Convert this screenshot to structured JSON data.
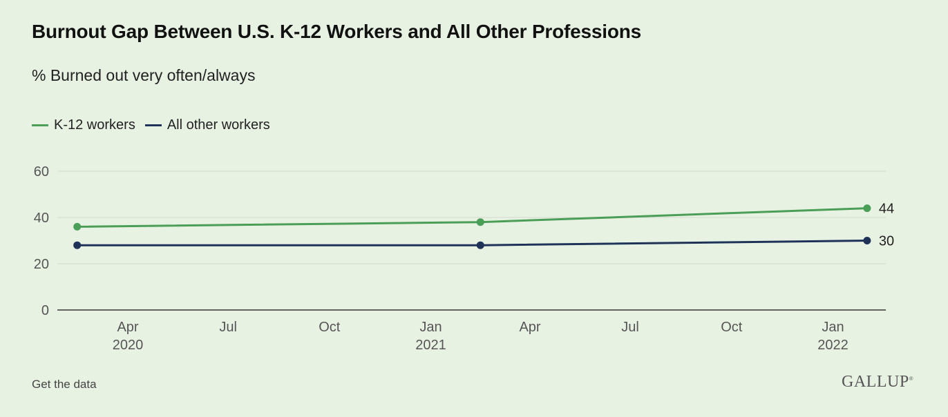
{
  "title": "Burnout Gap Between U.S. K-12 Workers and All Other Professions",
  "subtitle": "% Burned out very often/always",
  "footer": {
    "get_data": "Get the data",
    "logo": "GALLUP"
  },
  "colors": {
    "k12": "#4a9e57",
    "other": "#1f3258",
    "grid": "#cfd8cc",
    "axis": "#333333"
  },
  "chart_data": {
    "type": "line",
    "x": [
      "2020-02-15",
      "2021-02-15",
      "2022-02-01"
    ],
    "series": [
      {
        "name": "K-12 workers",
        "values": [
          36,
          38,
          44
        ],
        "color": "#4a9e57"
      },
      {
        "name": "All other workers",
        "values": [
          28,
          28,
          30
        ],
        "color": "#1f3258"
      }
    ],
    "ylim": [
      0,
      60
    ],
    "y_ticks": [
      0,
      20,
      40,
      60
    ],
    "x_ticks": [
      {
        "date": "2020-04-01",
        "label": "Apr",
        "year": "2020"
      },
      {
        "date": "2020-07-01",
        "label": "Jul",
        "year": ""
      },
      {
        "date": "2020-10-01",
        "label": "Oct",
        "year": ""
      },
      {
        "date": "2021-01-01",
        "label": "Jan",
        "year": "2021"
      },
      {
        "date": "2021-04-01",
        "label": "Apr",
        "year": ""
      },
      {
        "date": "2021-07-01",
        "label": "Jul",
        "year": ""
      },
      {
        "date": "2021-10-01",
        "label": "Oct",
        "year": ""
      },
      {
        "date": "2022-01-01",
        "label": "Jan",
        "year": "2022"
      }
    ],
    "xlim": [
      "2020-01-28",
      "2022-02-18"
    ],
    "end_labels": [
      "44",
      "30"
    ],
    "grid": true,
    "legend": "top-left"
  }
}
